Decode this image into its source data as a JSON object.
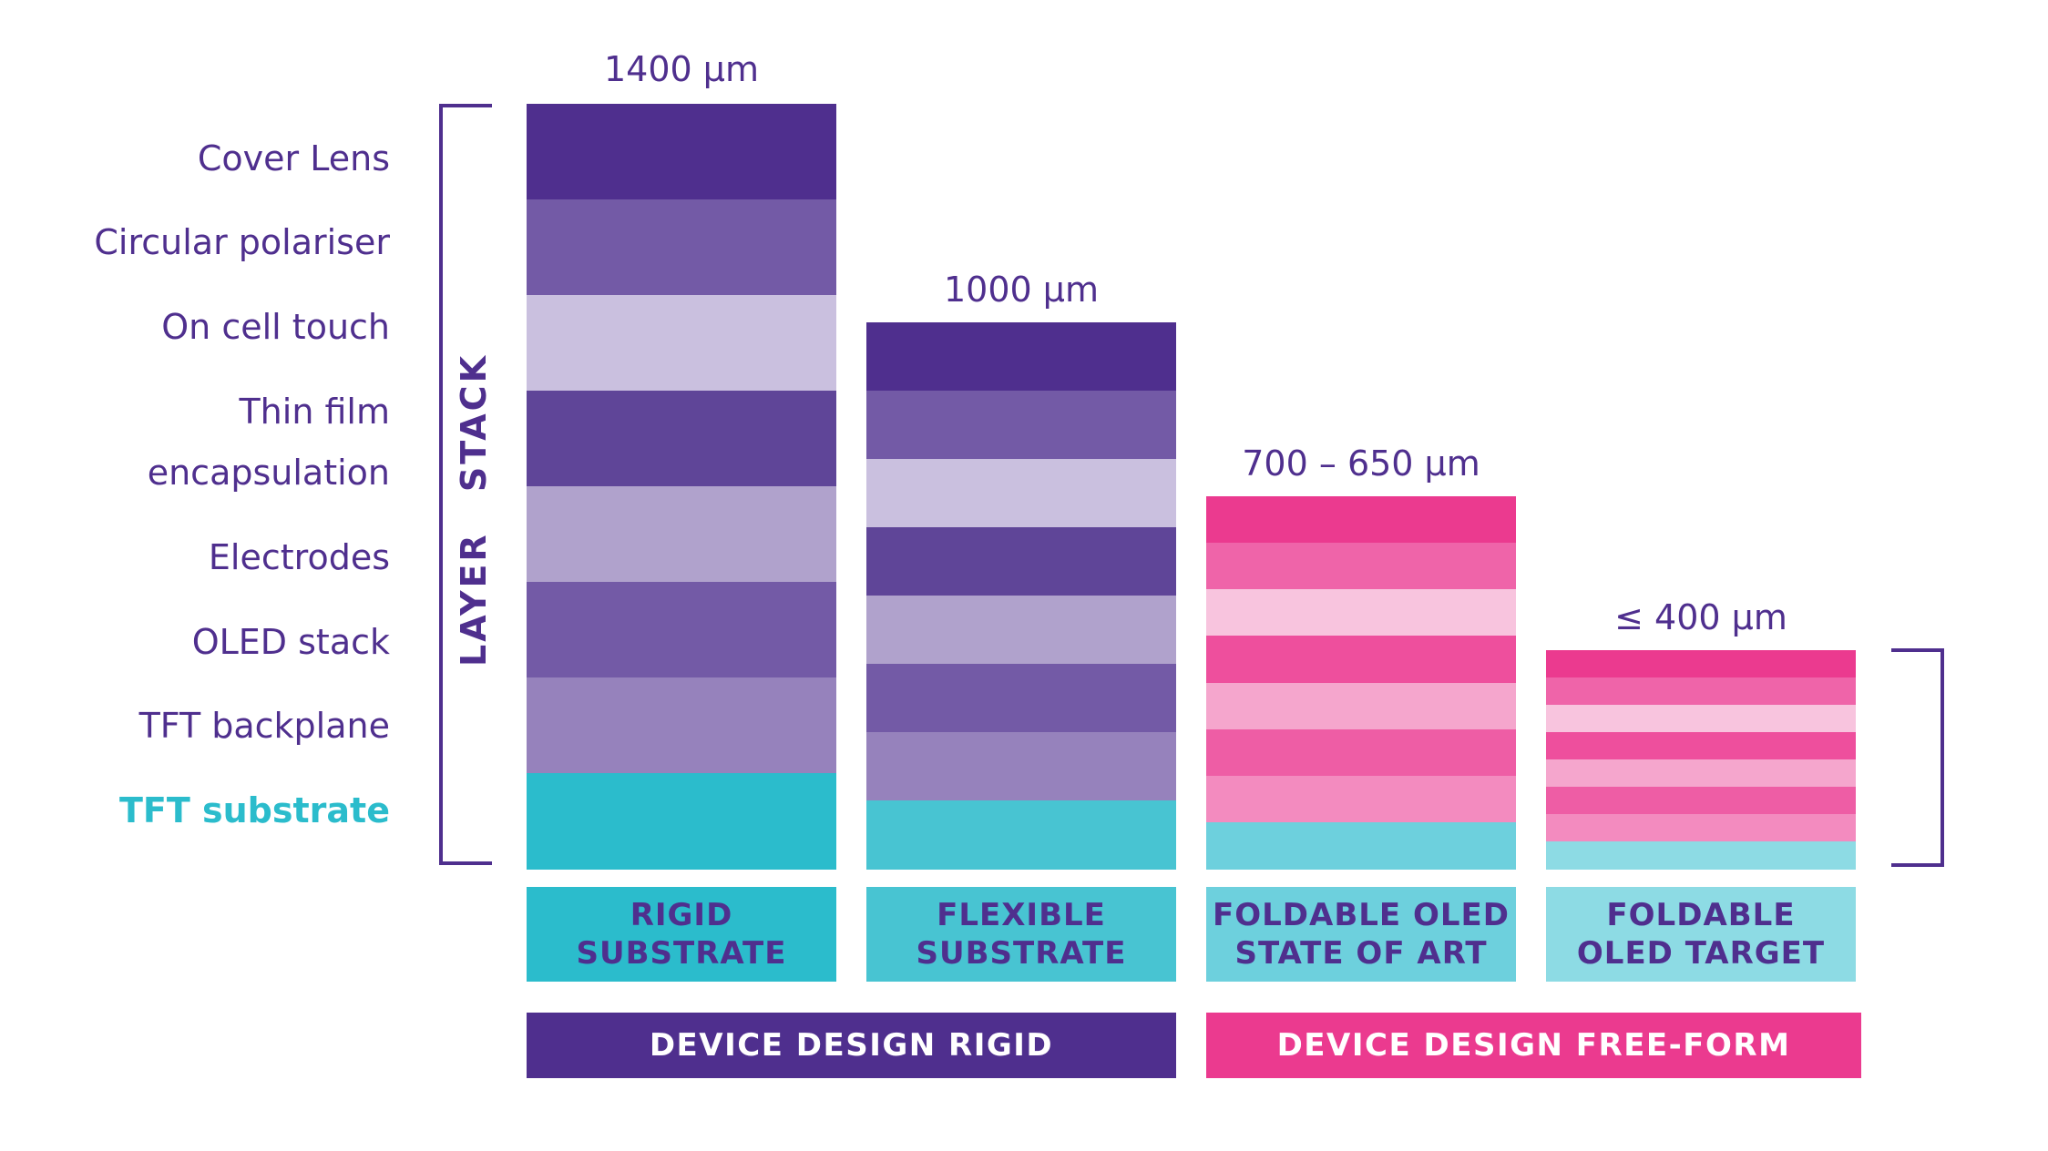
{
  "layer_labels": [
    {
      "text": "Cover Lens",
      "accent": false
    },
    {
      "text": "Circular polariser",
      "accent": false
    },
    {
      "text": "On cell touch",
      "accent": false
    },
    {
      "text": "Thin film",
      "accent": false
    },
    {
      "text": "encapsulation",
      "accent": false
    },
    {
      "text": "Electrodes",
      "accent": false
    },
    {
      "text": "OLED stack",
      "accent": false
    },
    {
      "text": "TFT backplane",
      "accent": false
    },
    {
      "text": "TFT substrate",
      "accent": true
    }
  ],
  "stack_label": "LAYER STACK",
  "columns": [
    {
      "thickness": "1400 µm",
      "label": "RIGID\nSUBSTRATE",
      "label_bg": "#2bbccc",
      "layer_colors": [
        "#4f2f8e",
        "#735aa6",
        "#cac0df",
        "#5f4598",
        "#b0a2cc",
        "#735aa6",
        "#9682bc",
        "#2bbccc"
      ]
    },
    {
      "thickness": "1000 µm",
      "label": "FLEXIBLE\nSUBSTRATE",
      "label_bg": "#48c4d2",
      "layer_colors": [
        "#4f2f8e",
        "#735aa6",
        "#cac0df",
        "#5f4598",
        "#b0a2cc",
        "#735aa6",
        "#9682bc",
        "#48c4d2"
      ]
    },
    {
      "thickness": "700 – 650 µm",
      "label": "FOLDABLE OLED\nSTATE OF ART",
      "label_bg": "#6dd0dd",
      "layer_colors": [
        "#eb3a8f",
        "#ef64a9",
        "#f8c4de",
        "#ee4f9d",
        "#f5a6cd",
        "#ee5da5",
        "#f38bbf",
        "#6dd0dd"
      ]
    },
    {
      "thickness": "≤ 400 µm",
      "label": "FOLDABLE\nOLED TARGET",
      "label_bg": "#8ddbe4",
      "layer_colors": [
        "#eb3a8f",
        "#ef64a9",
        "#f8c4de",
        "#ee4f9d",
        "#f5a6cd",
        "#ee5da5",
        "#f38bbf",
        "#8ddbe4"
      ]
    }
  ],
  "groups": [
    {
      "text": "DEVICE DESIGN RIGID",
      "color": "#4f2f8e"
    },
    {
      "text": "DEVICE DESIGN FREE-FORM",
      "color": "#eb3a8f"
    }
  ],
  "bracket_color": "#4f2f8e"
}
